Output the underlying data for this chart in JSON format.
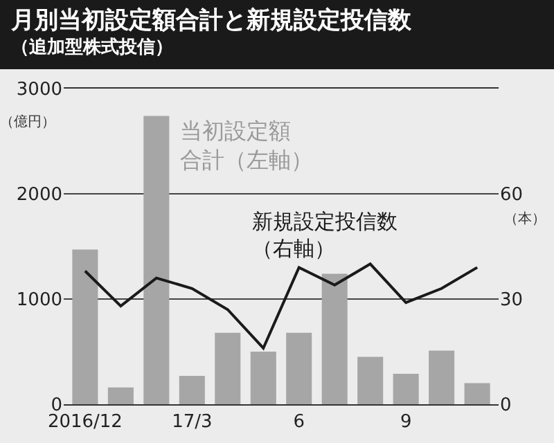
{
  "chart_data": {
    "type": "bar",
    "title": "月別当初設定額合計と新規設定投信数",
    "subtitle": "（追加型株式投信）",
    "ylabel": "（億円）",
    "y2label": "（本）",
    "categories": [
      "2016/12",
      null,
      null,
      "17/3",
      null,
      null,
      "6",
      null,
      null,
      "9",
      null,
      null
    ],
    "series": [
      {
        "name": "当初設定額合計（左軸）",
        "color": "#a6a6a6",
        "values": [
          1470,
          160,
          2740,
          270,
          680,
          500,
          680,
          1240,
          450,
          290,
          510,
          200
        ]
      },
      {
        "type": "line",
        "axis": "y2",
        "name": "新規設定投信数（右軸）",
        "color": "#1a1a1a",
        "values": [
          38,
          28,
          36,
          33,
          27,
          16,
          39,
          34,
          40,
          29,
          33,
          39
        ]
      }
    ],
    "ylim": [
      0,
      3000
    ],
    "yticks": [
      0,
      1000,
      2000,
      3000
    ],
    "y2lim": [
      0,
      90
    ],
    "y2ticks": [
      0,
      30,
      60
    ],
    "grid": "y",
    "legend": false
  }
}
